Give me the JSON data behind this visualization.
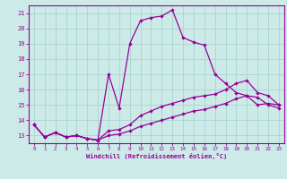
{
  "xlabel": "Windchill (Refroidissement éolien,°C)",
  "background_color": "#cceae7",
  "grid_color": "#aad4d0",
  "line_color": "#990099",
  "xlim": [
    -0.5,
    23.5
  ],
  "ylim": [
    12.5,
    21.5
  ],
  "xticks": [
    0,
    1,
    2,
    3,
    4,
    5,
    6,
    7,
    8,
    9,
    10,
    11,
    12,
    13,
    14,
    15,
    16,
    17,
    18,
    19,
    20,
    21,
    22,
    23
  ],
  "yticks": [
    13,
    14,
    15,
    16,
    17,
    18,
    19,
    20,
    21
  ],
  "line1_x": [
    0,
    1,
    2,
    3,
    4,
    5,
    6,
    7,
    8,
    9,
    10,
    11,
    12,
    13,
    14,
    15,
    16,
    17,
    18,
    19,
    20,
    21,
    22,
    23
  ],
  "line1_y": [
    13.7,
    12.9,
    13.2,
    12.9,
    13.0,
    12.8,
    12.7,
    17.0,
    14.8,
    19.0,
    20.5,
    20.7,
    20.8,
    21.2,
    19.4,
    19.1,
    18.9,
    17.0,
    16.4,
    15.8,
    15.6,
    15.0,
    15.1,
    15.0
  ],
  "line2_x": [
    0,
    1,
    2,
    3,
    4,
    5,
    6,
    7,
    8,
    9,
    10,
    11,
    12,
    13,
    14,
    15,
    16,
    17,
    18,
    19,
    20,
    21,
    22,
    23
  ],
  "line2_y": [
    13.7,
    12.9,
    13.2,
    12.9,
    13.0,
    12.8,
    12.7,
    13.3,
    13.4,
    13.7,
    14.3,
    14.6,
    14.9,
    15.1,
    15.3,
    15.5,
    15.6,
    15.7,
    16.0,
    16.4,
    16.6,
    15.8,
    15.6,
    15.0
  ],
  "line3_x": [
    0,
    1,
    2,
    3,
    4,
    5,
    6,
    7,
    8,
    9,
    10,
    11,
    12,
    13,
    14,
    15,
    16,
    17,
    18,
    19,
    20,
    21,
    22,
    23
  ],
  "line3_y": [
    13.7,
    12.9,
    13.2,
    12.9,
    13.0,
    12.8,
    12.7,
    13.0,
    13.1,
    13.3,
    13.6,
    13.8,
    14.0,
    14.2,
    14.4,
    14.6,
    14.7,
    14.9,
    15.1,
    15.4,
    15.6,
    15.5,
    15.0,
    14.8
  ]
}
